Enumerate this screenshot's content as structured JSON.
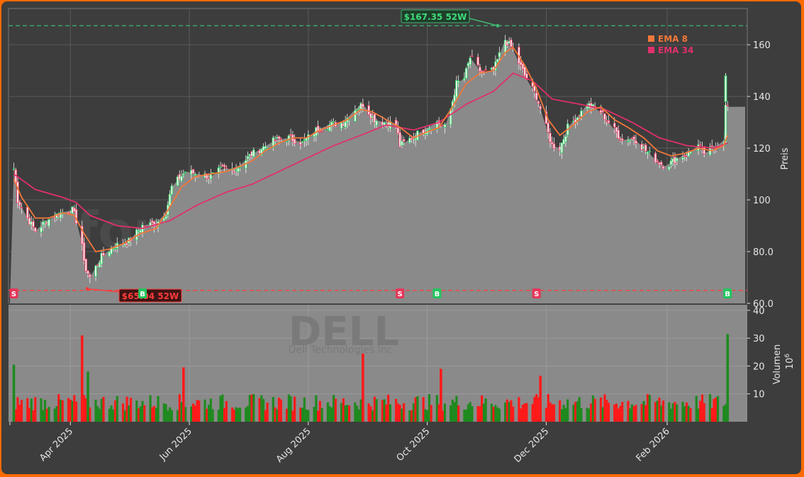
{
  "chart_data": {
    "type": "candlestick",
    "watermark": "forexsignale.trade",
    "ticker": "DELL",
    "company": "Dell Technologies Inc",
    "colors": {
      "frame": "#ff6a00",
      "background": "#3d3d3d",
      "area": "#8a8a8a",
      "up": "#22c55e",
      "down": "#e6365a",
      "ema8": "#f2773a",
      "ema34": "#e0306a",
      "high_line": "#3fb871",
      "low_line": "#ff3b3b",
      "vol_up": "#1f8a1f",
      "vol_down": "#ff1a1a"
    },
    "price_panel": {
      "ylabel": "Preis",
      "ylim": [
        60,
        174
      ],
      "yticks": [
        "60.0",
        "80.0",
        "100",
        "120",
        "140",
        "160"
      ],
      "high_52w": {
        "value": 167.35,
        "label": "$167.35 52W"
      },
      "low_52w": {
        "value": 65.04,
        "label": "$65.04 52W"
      },
      "legend": [
        {
          "name": "EMA 8",
          "color": "#f2773a"
        },
        {
          "name": "EMA 34",
          "color": "#e0306a"
        }
      ],
      "close_path": [
        [
          "2025-03-03",
          112
        ],
        [
          "2025-03-05",
          100
        ],
        [
          "2025-03-10",
          93
        ],
        [
          "2025-03-14",
          88
        ],
        [
          "2025-03-20",
          92
        ],
        [
          "2025-03-27",
          95
        ],
        [
          "2025-04-02",
          96
        ],
        [
          "2025-04-04",
          92
        ],
        [
          "2025-04-07",
          83
        ],
        [
          "2025-04-08",
          75
        ],
        [
          "2025-04-11",
          70
        ],
        [
          "2025-04-17",
          78
        ],
        [
          "2025-04-23",
          82
        ],
        [
          "2025-05-01",
          84
        ],
        [
          "2025-05-08",
          90
        ],
        [
          "2025-05-15",
          91
        ],
        [
          "2025-05-20",
          95
        ],
        [
          "2025-05-23",
          105
        ],
        [
          "2025-05-30",
          111
        ],
        [
          "2025-06-05",
          110
        ],
        [
          "2025-06-12",
          109
        ],
        [
          "2025-06-18",
          112
        ],
        [
          "2025-06-25",
          112
        ],
        [
          "2025-07-02",
          117
        ],
        [
          "2025-07-08",
          120
        ],
        [
          "2025-07-15",
          123
        ],
        [
          "2025-07-22",
          124
        ],
        [
          "2025-07-29",
          122
        ],
        [
          "2025-08-05",
          127
        ],
        [
          "2025-08-12",
          129
        ],
        [
          "2025-08-19",
          130
        ],
        [
          "2025-08-25",
          135
        ],
        [
          "2025-08-29",
          137
        ],
        [
          "2025-09-04",
          131
        ],
        [
          "2025-09-09",
          130
        ],
        [
          "2025-09-15",
          129
        ],
        [
          "2025-09-17",
          121
        ],
        [
          "2025-09-23",
          124
        ],
        [
          "2025-09-29",
          127
        ],
        [
          "2025-10-06",
          130
        ],
        [
          "2025-10-10",
          128
        ],
        [
          "2025-10-13",
          135
        ],
        [
          "2025-10-16",
          145
        ],
        [
          "2025-10-20",
          147
        ],
        [
          "2025-10-23",
          155
        ],
        [
          "2025-10-29",
          149
        ],
        [
          "2025-11-04",
          150
        ],
        [
          "2025-11-10",
          162
        ],
        [
          "2025-11-14",
          158
        ],
        [
          "2025-11-20",
          148
        ],
        [
          "2025-11-26",
          140
        ],
        [
          "2025-12-01",
          128
        ],
        [
          "2025-12-04",
          121
        ],
        [
          "2025-12-08",
          120
        ],
        [
          "2025-12-12",
          128
        ],
        [
          "2025-12-18",
          133
        ],
        [
          "2025-12-22",
          137
        ],
        [
          "2025-12-29",
          134
        ],
        [
          "2026-01-05",
          127
        ],
        [
          "2026-01-09",
          123
        ],
        [
          "2026-01-15",
          124
        ],
        [
          "2026-01-21",
          119
        ],
        [
          "2026-01-27",
          115
        ],
        [
          "2026-01-31",
          113
        ],
        [
          "2026-02-06",
          116
        ],
        [
          "2026-02-12",
          118
        ],
        [
          "2026-02-17",
          121
        ],
        [
          "2026-02-20",
          118
        ],
        [
          "2026-02-25",
          120
        ],
        [
          "2026-03-02",
          123
        ],
        [
          "2026-03-03",
          136
        ],
        [
          "2026-03-05",
          136
        ]
      ],
      "ema8_path": [
        [
          "2025-03-03",
          108
        ],
        [
          "2025-03-07",
          101
        ],
        [
          "2025-03-14",
          93
        ],
        [
          "2025-03-21",
          93
        ],
        [
          "2025-03-28",
          95
        ],
        [
          "2025-04-03",
          94
        ],
        [
          "2025-04-08",
          87
        ],
        [
          "2025-04-14",
          80
        ],
        [
          "2025-04-21",
          81
        ],
        [
          "2025-04-28",
          83
        ],
        [
          "2025-05-07",
          87
        ],
        [
          "2025-05-15",
          89
        ],
        [
          "2025-05-21",
          96
        ],
        [
          "2025-05-28",
          105
        ],
        [
          "2025-06-04",
          109
        ],
        [
          "2025-06-12",
          110
        ],
        [
          "2025-06-20",
          111
        ],
        [
          "2025-06-27",
          113
        ],
        [
          "2025-07-03",
          115
        ],
        [
          "2025-07-10",
          119
        ],
        [
          "2025-07-17",
          122
        ],
        [
          "2025-07-24",
          124
        ],
        [
          "2025-07-31",
          124
        ],
        [
          "2025-08-07",
          127
        ],
        [
          "2025-08-14",
          129
        ],
        [
          "2025-08-21",
          131
        ],
        [
          "2025-08-28",
          135
        ],
        [
          "2025-09-03",
          134
        ],
        [
          "2025-09-10",
          131
        ],
        [
          "2025-09-17",
          128
        ],
        [
          "2025-09-24",
          124
        ],
        [
          "2025-09-30",
          126
        ],
        [
          "2025-10-07",
          128
        ],
        [
          "2025-10-14",
          136
        ],
        [
          "2025-10-21",
          145
        ],
        [
          "2025-10-28",
          149
        ],
        [
          "2025-11-04",
          150
        ],
        [
          "2025-11-10",
          157
        ],
        [
          "2025-11-14",
          159
        ],
        [
          "2025-11-20",
          152
        ],
        [
          "2025-11-26",
          143
        ],
        [
          "2025-12-02",
          131
        ],
        [
          "2025-12-08",
          125
        ],
        [
          "2025-12-15",
          129
        ],
        [
          "2025-12-22",
          134
        ],
        [
          "2025-12-29",
          136
        ],
        [
          "2026-01-05",
          131
        ],
        [
          "2026-01-12",
          128
        ],
        [
          "2026-01-20",
          124
        ],
        [
          "2026-01-27",
          119
        ],
        [
          "2026-02-03",
          117
        ],
        [
          "2026-02-10",
          118
        ],
        [
          "2026-02-17",
          120
        ],
        [
          "2026-02-24",
          119
        ],
        [
          "2026-03-02",
          121
        ],
        [
          "2026-03-04",
          125
        ]
      ],
      "ema34_path": [
        [
          "2025-03-03",
          110
        ],
        [
          "2025-03-14",
          104
        ],
        [
          "2025-03-28",
          101
        ],
        [
          "2025-04-04",
          99
        ],
        [
          "2025-04-11",
          94
        ],
        [
          "2025-04-25",
          90
        ],
        [
          "2025-05-08",
          89
        ],
        [
          "2025-05-22",
          92
        ],
        [
          "2025-06-05",
          98
        ],
        [
          "2025-06-20",
          103
        ],
        [
          "2025-07-03",
          106
        ],
        [
          "2025-07-17",
          111
        ],
        [
          "2025-07-31",
          116
        ],
        [
          "2025-08-14",
          121
        ],
        [
          "2025-08-28",
          125
        ],
        [
          "2025-09-10",
          129
        ],
        [
          "2025-09-24",
          127
        ],
        [
          "2025-10-07",
          130
        ],
        [
          "2025-10-21",
          137
        ],
        [
          "2025-11-04",
          142
        ],
        [
          "2025-11-14",
          149
        ],
        [
          "2025-11-24",
          146
        ],
        [
          "2025-12-04",
          139
        ],
        [
          "2025-12-18",
          137
        ],
        [
          "2025-12-31",
          135
        ],
        [
          "2026-01-14",
          130
        ],
        [
          "2026-01-28",
          124
        ],
        [
          "2026-02-11",
          121
        ],
        [
          "2026-02-25",
          120
        ],
        [
          "2026-03-04",
          122
        ]
      ],
      "signals": [
        {
          "date": "2025-03-03",
          "type": "S"
        },
        {
          "date": "2025-05-08",
          "type": "B"
        },
        {
          "date": "2025-09-17",
          "type": "S"
        },
        {
          "date": "2025-10-06",
          "type": "B"
        },
        {
          "date": "2025-11-26",
          "type": "S"
        },
        {
          "date": "2026-03-04",
          "type": "B"
        }
      ]
    },
    "volume_panel": {
      "ylabel": "Volumen",
      "unit": "10^6",
      "ylim": [
        0,
        42
      ],
      "yticks": [
        "10",
        "20",
        "30",
        "40"
      ],
      "spikes": [
        {
          "date": "2025-03-03",
          "value": 20.5,
          "up": true
        },
        {
          "date": "2025-04-07",
          "value": 31,
          "up": false
        },
        {
          "date": "2025-04-10",
          "value": 18,
          "up": true
        },
        {
          "date": "2025-05-29",
          "value": 19.5,
          "up": false
        },
        {
          "date": "2025-08-29",
          "value": 24.5,
          "up": false
        },
        {
          "date": "2025-10-08",
          "value": 19,
          "up": false
        },
        {
          "date": "2025-11-28",
          "value": 16.5,
          "up": false
        },
        {
          "date": "2026-03-04",
          "value": 31.5,
          "up": true
        }
      ]
    },
    "x_axis": {
      "ticks": [
        {
          "date": "2025-04-01",
          "label": "Apr 2025"
        },
        {
          "date": "2025-06-01",
          "label": "Jun 2025"
        },
        {
          "date": "2025-08-01",
          "label": "Aug 2025"
        },
        {
          "date": "2025-10-01",
          "label": "Oct 2025"
        },
        {
          "date": "2025-12-01",
          "label": "Dec 2025"
        },
        {
          "date": "2026-02-01",
          "label": "Feb 2026"
        }
      ],
      "range": [
        "2025-03-01",
        "2026-03-13"
      ]
    }
  }
}
